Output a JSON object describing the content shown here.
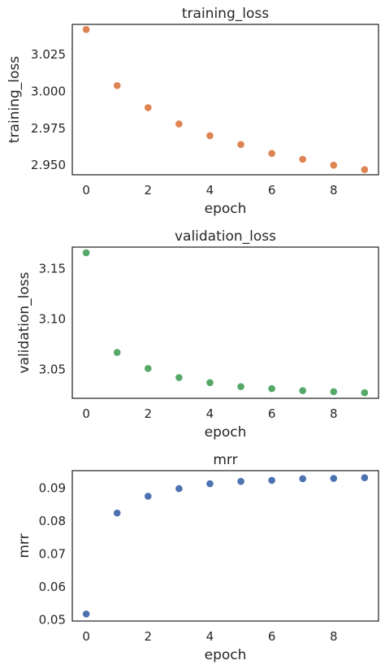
{
  "chart_data": [
    {
      "type": "scatter",
      "title": "training_loss",
      "xlabel": "epoch",
      "ylabel": "training_loss",
      "color": "#dd8452",
      "x": [
        0,
        1,
        2,
        3,
        4,
        5,
        6,
        7,
        8,
        9
      ],
      "y": [
        3.042,
        3.004,
        2.989,
        2.978,
        2.97,
        2.964,
        2.958,
        2.954,
        2.95,
        2.947
      ],
      "xlim": [
        -0.45,
        9.45
      ],
      "ylim": [
        2.9435,
        3.0455
      ],
      "xticks": [
        0,
        2,
        4,
        6,
        8
      ],
      "yticks": [
        2.95,
        2.975,
        3.0,
        3.025
      ],
      "yticklabels": [
        "2.950",
        "2.975",
        "3.000",
        "3.025"
      ],
      "grid": false
    },
    {
      "type": "scatter",
      "title": "validation_loss",
      "xlabel": "epoch",
      "ylabel": "validation_loss",
      "color": "#55a868",
      "x": [
        0,
        1,
        2,
        3,
        4,
        5,
        6,
        7,
        8,
        9
      ],
      "y": [
        3.166,
        3.067,
        3.051,
        3.042,
        3.037,
        3.033,
        3.031,
        3.029,
        3.028,
        3.027
      ],
      "xlim": [
        -0.45,
        9.45
      ],
      "ylim": [
        3.0214,
        3.1716
      ],
      "xticks": [
        0,
        2,
        4,
        6,
        8
      ],
      "yticks": [
        3.05,
        3.1,
        3.15
      ],
      "yticklabels": [
        "3.05",
        "3.10",
        "3.15"
      ],
      "grid": false
    },
    {
      "type": "scatter",
      "title": "mrr",
      "xlabel": "epoch",
      "ylabel": "mrr",
      "color": "#4c72b0",
      "x": [
        0,
        1,
        2,
        3,
        4,
        5,
        6,
        7,
        8,
        9
      ],
      "y": [
        0.0518,
        0.0824,
        0.0875,
        0.0898,
        0.0913,
        0.092,
        0.0923,
        0.0928,
        0.0929,
        0.0931
      ],
      "xlim": [
        -0.45,
        9.45
      ],
      "ylim": [
        0.04965,
        0.09525
      ],
      "xticks": [
        0,
        2,
        4,
        6,
        8
      ],
      "yticks": [
        0.05,
        0.06,
        0.07,
        0.08,
        0.09
      ],
      "yticklabels": [
        "0.05",
        "0.06",
        "0.07",
        "0.08",
        "0.09"
      ],
      "grid": false
    }
  ]
}
